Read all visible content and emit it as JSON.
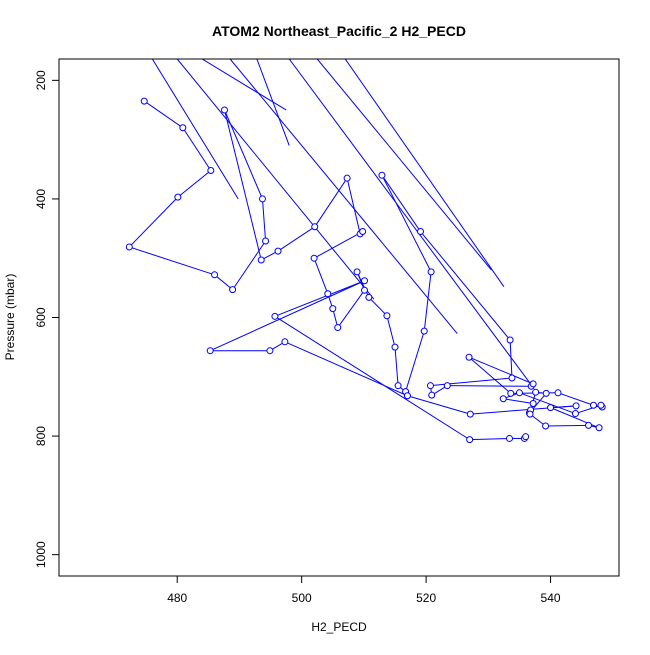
{
  "chart_data": {
    "type": "line",
    "title": "ATOM2 Northeast_Pacific_2 H2_PECD",
    "xlabel": "H2_PECD",
    "ylabel": "Pressure (mbar)",
    "xlim": [
      461,
      551
    ],
    "ylim": [
      1036,
      164
    ],
    "y_reversed": true,
    "grid": false,
    "legend": "none",
    "x_ticks": [
      480,
      500,
      520,
      540
    ],
    "y_ticks": [
      200,
      400,
      600,
      800,
      1000
    ],
    "series_color": "#0000ff",
    "marker": "open-circle",
    "segments_above_plot": [
      {
        "x1": 476.0,
        "y1": 164,
        "x2": 489.8,
        "y2": 400
      },
      {
        "x1": 480.0,
        "y1": 164,
        "x2": 511.6,
        "y2": 569
      },
      {
        "x1": 484.0,
        "y1": 164,
        "x2": 497.5,
        "y2": 250
      },
      {
        "x1": 488.5,
        "y1": 164,
        "x2": 525.0,
        "y2": 627
      },
      {
        "x1": 492.8,
        "y1": 164,
        "x2": 498.0,
        "y2": 310
      },
      {
        "x1": 498.0,
        "y1": 164,
        "x2": 537.0,
        "y2": 715
      },
      {
        "x1": 502.5,
        "y1": 164,
        "x2": 530.5,
        "y2": 520
      },
      {
        "x1": 507.0,
        "y1": 164,
        "x2": 532.5,
        "y2": 548
      }
    ],
    "series": [
      {
        "points": [
          {
            "x": 474.7,
            "y": 235
          },
          {
            "x": 480.9,
            "y": 280
          },
          {
            "x": 485.4,
            "y": 352
          },
          {
            "x": 480.1,
            "y": 397
          },
          {
            "x": 472.3,
            "y": 481
          },
          {
            "x": 486.0,
            "y": 528
          },
          {
            "x": 488.9,
            "y": 553
          },
          {
            "x": 494.2,
            "y": 471
          },
          {
            "x": 493.7,
            "y": 400
          },
          {
            "x": 487.6,
            "y": 250
          },
          {
            "x": 493.5,
            "y": 503
          },
          {
            "x": 496.2,
            "y": 488
          },
          {
            "x": 502.1,
            "y": 447
          },
          {
            "x": 507.3,
            "y": 365
          },
          {
            "x": 509.4,
            "y": 459
          },
          {
            "x": 509.8,
            "y": 455
          },
          {
            "x": 502.0,
            "y": 500
          },
          {
            "x": 504.2,
            "y": 560
          },
          {
            "x": 505.0,
            "y": 585
          },
          {
            "x": 505.8,
            "y": 617
          },
          {
            "x": 510.1,
            "y": 554
          },
          {
            "x": 508.9,
            "y": 523
          },
          {
            "x": 510.8,
            "y": 566
          },
          {
            "x": 513.7,
            "y": 597
          },
          {
            "x": 515.0,
            "y": 650
          },
          {
            "x": 515.5,
            "y": 715
          },
          {
            "x": 516.7,
            "y": 725
          },
          {
            "x": 519.7,
            "y": 623
          },
          {
            "x": 520.8,
            "y": 523
          },
          {
            "x": 512.9,
            "y": 360
          },
          {
            "x": 519.1,
            "y": 455
          },
          {
            "x": 533.5,
            "y": 638
          },
          {
            "x": 533.8,
            "y": 702
          },
          {
            "x": 520.7,
            "y": 715
          },
          {
            "x": 520.9,
            "y": 731
          },
          {
            "x": 523.4,
            "y": 715
          },
          {
            "x": 536.9,
            "y": 716
          },
          {
            "x": 537.2,
            "y": 712
          },
          {
            "x": 526.9,
            "y": 667
          },
          {
            "x": 533.6,
            "y": 728
          },
          {
            "x": 541.2,
            "y": 727
          },
          {
            "x": 546.9,
            "y": 748
          },
          {
            "x": 548.3,
            "y": 751
          },
          {
            "x": 548.1,
            "y": 748
          },
          {
            "x": 544.0,
            "y": 762
          },
          {
            "x": 535.0,
            "y": 727
          },
          {
            "x": 532.4,
            "y": 737
          },
          {
            "x": 537.2,
            "y": 745
          },
          {
            "x": 536.6,
            "y": 761
          },
          {
            "x": 539.3,
            "y": 728
          },
          {
            "x": 537.6,
            "y": 726
          },
          {
            "x": 536.8,
            "y": 756
          },
          {
            "x": 536.7,
            "y": 763
          },
          {
            "x": 539.2,
            "y": 783
          },
          {
            "x": 546.1,
            "y": 782
          },
          {
            "x": 547.8,
            "y": 786
          },
          {
            "x": 540.0,
            "y": 752
          },
          {
            "x": 544.1,
            "y": 749
          },
          {
            "x": 527.1,
            "y": 763
          },
          {
            "x": 517.0,
            "y": 732
          },
          {
            "x": 497.3,
            "y": 641
          },
          {
            "x": 494.9,
            "y": 656
          },
          {
            "x": 485.3,
            "y": 656
          },
          {
            "x": 510.1,
            "y": 538
          },
          {
            "x": 495.7,
            "y": 598
          },
          {
            "x": 527.0,
            "y": 806
          },
          {
            "x": 533.4,
            "y": 804
          },
          {
            "x": 535.8,
            "y": 804
          },
          {
            "x": 536.0,
            "y": 801
          }
        ]
      }
    ]
  }
}
